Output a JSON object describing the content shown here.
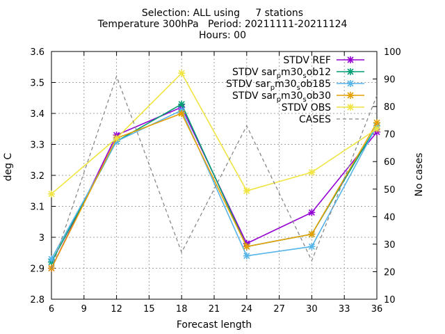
{
  "chart_data": {
    "type": "line",
    "title_lines": [
      "Selection: ALL using     7 stations",
      "Temperature 300hPa   Period: 20211111-20211124",
      "Hours: 00"
    ],
    "xlabel": "Forecast length",
    "ylabel": "deg C",
    "y2label": "No cases",
    "xlim": [
      6,
      36
    ],
    "ylim": [
      2.8,
      3.6
    ],
    "y2lim": [
      10,
      100
    ],
    "xticks": [
      "6",
      "9",
      "12",
      "15",
      "18",
      "21",
      "24",
      "27",
      "30",
      "33",
      "36"
    ],
    "yticks": [
      "2.8",
      "2.9",
      "3",
      "3.1",
      "3.2",
      "3.3",
      "3.4",
      "3.5",
      "3.6"
    ],
    "y2ticks": [
      "10",
      "20",
      "30",
      "40",
      "50",
      "60",
      "70",
      "80",
      "90",
      "100"
    ],
    "grid": true,
    "legend_position": "top-right",
    "x": [
      6,
      12,
      18,
      24,
      30,
      36
    ],
    "series": [
      {
        "name": "STDV REF",
        "label_main": "STDV REF",
        "axis": "left",
        "color": "#9400d3",
        "marker": "asterisk",
        "values": [
          2.9,
          3.33,
          3.42,
          2.98,
          3.08,
          3.34
        ]
      },
      {
        "name": "STDV sar_m30_ob12",
        "label_main": "STDV sar",
        "label_sub": "p",
        "label_rest": "m30",
        "label_sub2": "s",
        "label_end": "ob12",
        "axis": "left",
        "color": "#009e73",
        "marker": "asterisk",
        "values": [
          2.92,
          3.31,
          3.43,
          2.97,
          3.01,
          3.36
        ]
      },
      {
        "name": "STDV sar_m30_ob185",
        "label_main": "STDV sar",
        "label_sub": "p",
        "label_rest": "m30",
        "label_sub2": "s",
        "label_end": "ob185",
        "axis": "left",
        "color": "#56b4e9",
        "marker": "asterisk",
        "values": [
          2.93,
          3.31,
          3.41,
          2.94,
          2.97,
          3.36
        ]
      },
      {
        "name": "STDV sar_m30_ob30",
        "label_main": "STDV sar",
        "label_sub": "p",
        "label_rest": "m30",
        "label_sub2": "s",
        "label_end": "ob30",
        "axis": "left",
        "color": "#e69f00",
        "marker": "asterisk",
        "values": [
          2.9,
          3.32,
          3.4,
          2.97,
          3.01,
          3.37
        ]
      },
      {
        "name": "STDV OBS",
        "label_main": "STDV OBS",
        "axis": "left",
        "color": "#f0e442",
        "marker": "asterisk",
        "values": [
          3.14,
          3.32,
          3.53,
          3.15,
          3.21,
          3.35
        ]
      },
      {
        "name": "CASES",
        "label_main": "CASES",
        "axis": "right",
        "color": "#888888",
        "marker": "none",
        "dashed": true,
        "values": [
          21,
          91,
          27,
          73,
          24,
          84
        ]
      }
    ]
  }
}
